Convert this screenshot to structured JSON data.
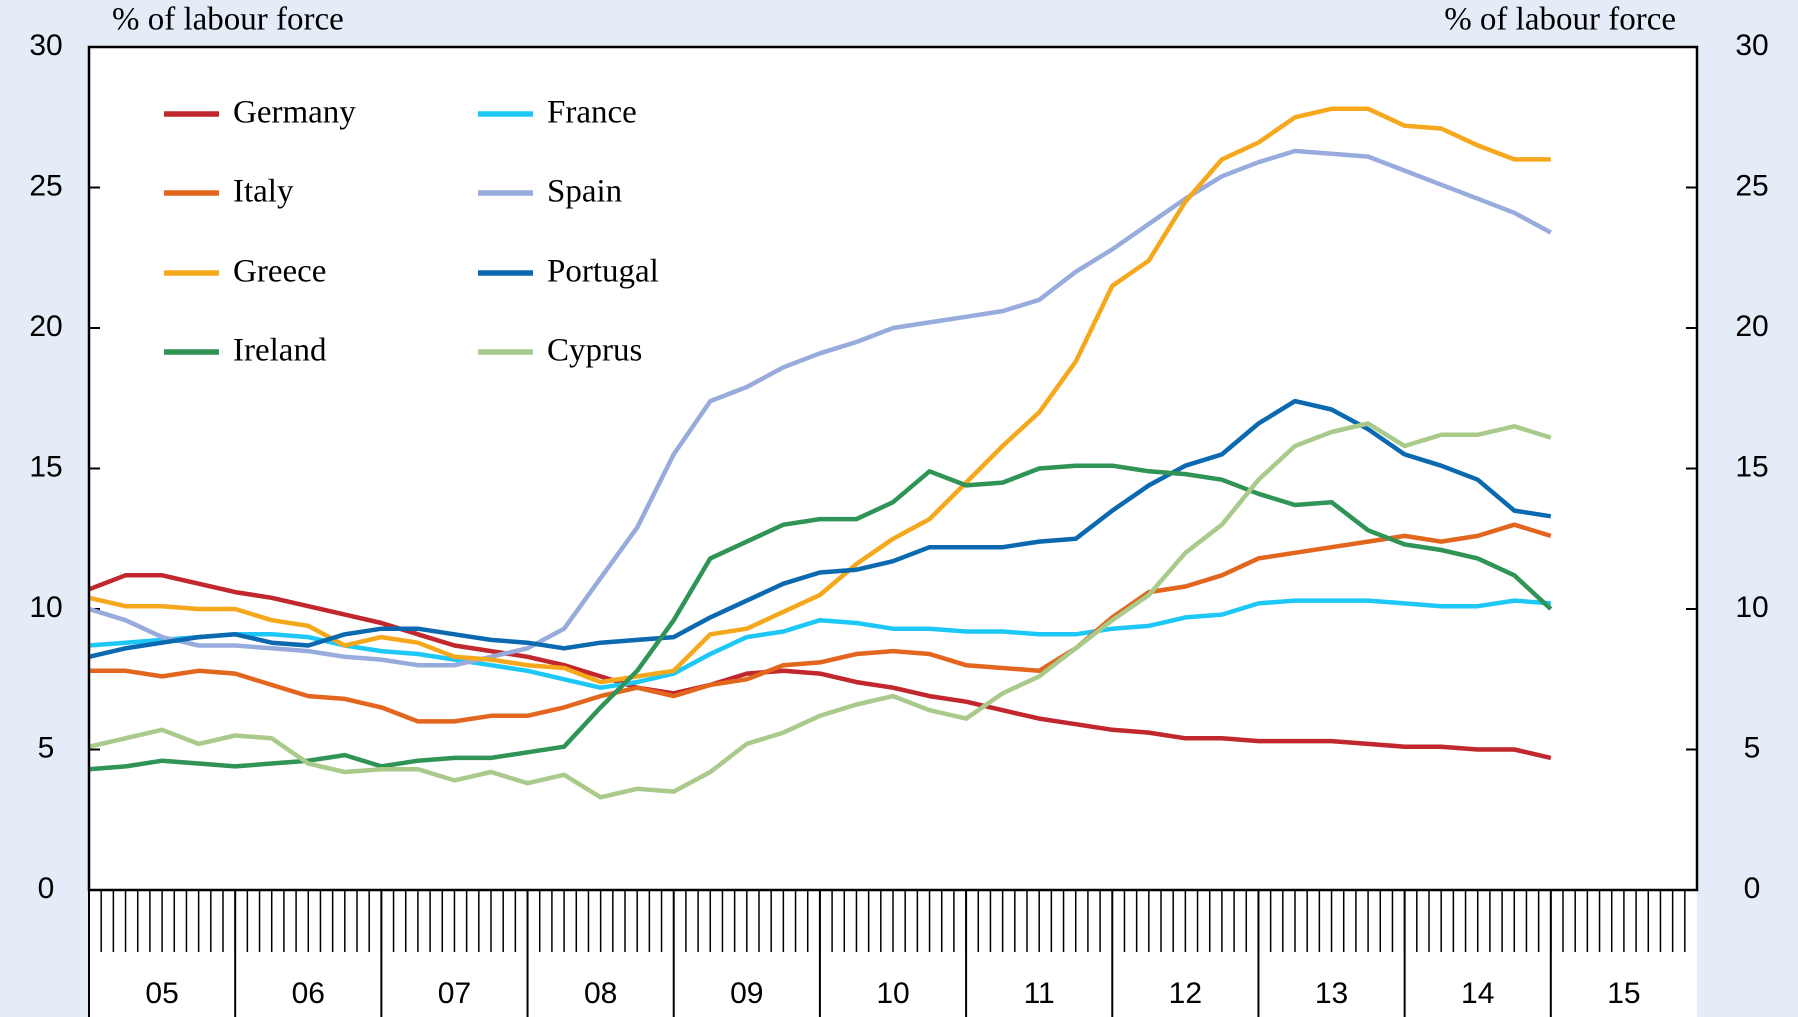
{
  "chart_data": {
    "type": "line",
    "y_label": "% of labour force",
    "y2_label": "% of labour force",
    "x": [
      2005,
      2005.25,
      2005.5,
      2005.75,
      2006,
      2006.25,
      2006.5,
      2006.75,
      2007,
      2007.25,
      2007.5,
      2007.75,
      2008,
      2008.25,
      2008.5,
      2008.75,
      2009,
      2009.25,
      2009.5,
      2009.75,
      2010,
      2010.25,
      2010.5,
      2010.75,
      2011,
      2011.25,
      2011.5,
      2011.75,
      2012,
      2012.25,
      2012.5,
      2012.75,
      2013,
      2013.25,
      2013.5,
      2013.75,
      2014,
      2014.25,
      2014.5,
      2014.75,
      2015
    ],
    "xlim": [
      2005,
      2016
    ],
    "xticks": [
      {
        "value": 2005,
        "label": "05"
      },
      {
        "value": 2006,
        "label": "06"
      },
      {
        "value": 2007,
        "label": "07"
      },
      {
        "value": 2008,
        "label": "08"
      },
      {
        "value": 2009,
        "label": "09"
      },
      {
        "value": 2010,
        "label": "10"
      },
      {
        "value": 2011,
        "label": "11"
      },
      {
        "value": 2012,
        "label": "12"
      },
      {
        "value": 2013,
        "label": "13"
      },
      {
        "value": 2014,
        "label": "14"
      },
      {
        "value": 2015,
        "label": "15"
      }
    ],
    "ylim": [
      0,
      30
    ],
    "yticks": [
      0,
      5,
      10,
      15,
      20,
      25,
      30
    ],
    "y2lim": [
      0,
      30
    ],
    "y2ticks": [
      0,
      5,
      10,
      15,
      20,
      25,
      30
    ],
    "legend": "upper left",
    "series": [
      {
        "name": "Germany",
        "color": "#c1272d",
        "values": [
          10.7,
          11.2,
          11.2,
          10.9,
          10.6,
          10.4,
          10.1,
          9.8,
          9.5,
          9.1,
          8.7,
          8.5,
          8.3,
          8.0,
          7.6,
          7.2,
          7.0,
          7.3,
          7.7,
          7.8,
          7.7,
          7.4,
          7.2,
          6.9,
          6.7,
          6.4,
          6.1,
          5.9,
          5.7,
          5.6,
          5.4,
          5.4,
          5.3,
          5.3,
          5.3,
          5.2,
          5.1,
          5.1,
          5.0,
          5.0,
          4.7
        ]
      },
      {
        "name": "France",
        "color": "#1ec8f6",
        "values": [
          8.7,
          8.8,
          8.9,
          9.0,
          9.1,
          9.1,
          9.0,
          8.7,
          8.5,
          8.4,
          8.2,
          8.0,
          7.8,
          7.5,
          7.2,
          7.4,
          7.7,
          8.4,
          9.0,
          9.2,
          9.6,
          9.5,
          9.3,
          9.3,
          9.2,
          9.2,
          9.1,
          9.1,
          9.3,
          9.4,
          9.7,
          9.8,
          10.2,
          10.3,
          10.3,
          10.3,
          10.2,
          10.1,
          10.1,
          10.3,
          10.2
        ]
      },
      {
        "name": "Italy",
        "color": "#e2661e",
        "values": [
          7.8,
          7.8,
          7.6,
          7.8,
          7.7,
          7.3,
          6.9,
          6.8,
          6.5,
          6.0,
          6.0,
          6.2,
          6.2,
          6.5,
          6.9,
          7.2,
          6.9,
          7.3,
          7.5,
          8.0,
          8.1,
          8.4,
          8.5,
          8.4,
          8.0,
          7.9,
          7.8,
          8.6,
          9.7,
          10.6,
          10.8,
          11.2,
          11.8,
          12.0,
          12.2,
          12.4,
          12.6,
          12.4,
          12.6,
          13.0,
          12.6
        ]
      },
      {
        "name": "Spain",
        "color": "#97abdc",
        "values": [
          10.0,
          9.6,
          9.0,
          8.7,
          8.7,
          8.6,
          8.5,
          8.3,
          8.2,
          8.0,
          8.0,
          8.3,
          8.6,
          9.3,
          11.1,
          12.9,
          15.5,
          17.4,
          17.9,
          18.6,
          19.1,
          19.5,
          20.0,
          20.2,
          20.4,
          20.6,
          21.0,
          22.0,
          22.8,
          23.7,
          24.6,
          25.4,
          25.9,
          26.3,
          26.2,
          26.1,
          25.6,
          25.1,
          24.6,
          24.1,
          23.4
        ]
      },
      {
        "name": "Greece",
        "color": "#f6a81c",
        "values": [
          10.4,
          10.1,
          10.1,
          10.0,
          10.0,
          9.6,
          9.4,
          8.7,
          9.0,
          8.8,
          8.3,
          8.2,
          8.0,
          7.9,
          7.4,
          7.6,
          7.8,
          9.1,
          9.3,
          9.9,
          10.5,
          11.6,
          12.5,
          13.2,
          14.5,
          15.8,
          17.0,
          18.8,
          21.5,
          22.4,
          24.5,
          26.0,
          26.6,
          27.5,
          27.8,
          27.8,
          27.2,
          27.1,
          26.5,
          26.0,
          26.0
        ]
      },
      {
        "name": "Portugal",
        "color": "#0b69b0",
        "values": [
          8.3,
          8.6,
          8.8,
          9.0,
          9.1,
          8.8,
          8.7,
          9.1,
          9.3,
          9.3,
          9.1,
          8.9,
          8.8,
          8.6,
          8.8,
          8.9,
          9.0,
          9.7,
          10.3,
          10.9,
          11.3,
          11.4,
          11.7,
          12.2,
          12.2,
          12.2,
          12.4,
          12.5,
          13.5,
          14.4,
          15.1,
          15.5,
          16.6,
          17.4,
          17.1,
          16.4,
          15.5,
          15.1,
          14.6,
          13.5,
          13.3
        ]
      },
      {
        "name": "Ireland",
        "color": "#2f9456",
        "values": [
          4.3,
          4.4,
          4.6,
          4.5,
          4.4,
          4.5,
          4.6,
          4.8,
          4.4,
          4.6,
          4.7,
          4.7,
          4.9,
          5.1,
          6.5,
          7.8,
          9.6,
          11.8,
          12.4,
          13.0,
          13.2,
          13.2,
          13.8,
          14.9,
          14.4,
          14.5,
          15.0,
          15.1,
          15.1,
          14.9,
          14.8,
          14.6,
          14.1,
          13.7,
          13.8,
          12.8,
          12.3,
          12.1,
          11.8,
          11.2,
          10.0
        ]
      },
      {
        "name": "Cyprus",
        "color": "#a9ca8b",
        "values": [
          5.1,
          5.4,
          5.7,
          5.2,
          5.5,
          5.4,
          4.5,
          4.2,
          4.3,
          4.3,
          3.9,
          4.2,
          3.8,
          4.1,
          3.3,
          3.6,
          3.5,
          4.2,
          5.2,
          5.6,
          6.2,
          6.6,
          6.9,
          6.4,
          6.1,
          7.0,
          7.6,
          8.6,
          9.6,
          10.5,
          12.0,
          13.0,
          14.6,
          15.8,
          16.3,
          16.6,
          15.8,
          16.2,
          16.2,
          16.5,
          16.1
        ]
      }
    ]
  }
}
